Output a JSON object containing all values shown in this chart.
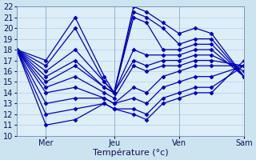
{
  "title": "",
  "xlabel": "Température (°c)",
  "ylabel": "",
  "ylim": [
    10,
    22
  ],
  "yticks": [
    10,
    11,
    12,
    13,
    14,
    15,
    16,
    17,
    18,
    19,
    20,
    21,
    22
  ],
  "background_color": "#cce4f0",
  "plot_bg_color": "#ddeef8",
  "line_color": "#0000bb",
  "grid_color": "#aac8dc",
  "lines": [
    [
      18.0,
      17.0,
      21.0,
      15.5,
      14.0,
      22.0,
      21.5,
      20.5,
      19.5,
      20.0,
      19.5,
      15.5
    ],
    [
      18.0,
      16.5,
      20.0,
      15.0,
      14.0,
      21.5,
      21.0,
      20.0,
      18.5,
      19.0,
      19.0,
      15.5
    ],
    [
      18.0,
      16.0,
      18.0,
      15.0,
      14.0,
      21.0,
      20.5,
      18.0,
      18.0,
      18.5,
      18.5,
      15.5
    ],
    [
      18.0,
      15.5,
      17.0,
      14.5,
      14.0,
      18.0,
      17.5,
      17.5,
      17.5,
      18.0,
      18.0,
      15.5
    ],
    [
      18.0,
      15.0,
      16.5,
      14.5,
      14.0,
      17.0,
      16.5,
      17.0,
      17.0,
      17.5,
      17.5,
      16.0
    ],
    [
      18.0,
      14.5,
      15.5,
      14.0,
      13.5,
      16.5,
      16.0,
      16.5,
      16.5,
      17.0,
      17.0,
      16.5
    ],
    [
      18.0,
      14.0,
      14.5,
      13.5,
      13.0,
      14.5,
      14.0,
      15.5,
      16.0,
      16.5,
      16.5,
      16.5
    ],
    [
      18.0,
      13.0,
      13.5,
      13.5,
      13.0,
      13.5,
      13.0,
      14.5,
      15.0,
      15.5,
      15.5,
      16.5
    ],
    [
      18.0,
      12.0,
      12.5,
      13.0,
      12.5,
      12.5,
      12.0,
      13.5,
      14.0,
      14.5,
      14.5,
      16.5
    ],
    [
      18.0,
      11.0,
      11.5,
      13.0,
      12.5,
      12.0,
      11.5,
      13.0,
      13.5,
      14.0,
      14.0,
      17.0
    ]
  ],
  "x_positions": [
    0.0,
    0.9,
    1.8,
    2.7,
    3.0,
    3.6,
    4.0,
    4.5,
    5.0,
    5.5,
    6.0,
    7.0
  ],
  "day_vlines": [
    0.9,
    3.0,
    5.0,
    7.0
  ],
  "xtick_positions": [
    0.9,
    3.0,
    5.0,
    7.0
  ],
  "xtick_labels": [
    "Mer",
    "Jeu",
    "Ven",
    "Sam"
  ],
  "marker": "D",
  "markersize": 2.5,
  "linewidth": 0.9,
  "xlabel_fontsize": 8,
  "tick_fontsize": 7
}
